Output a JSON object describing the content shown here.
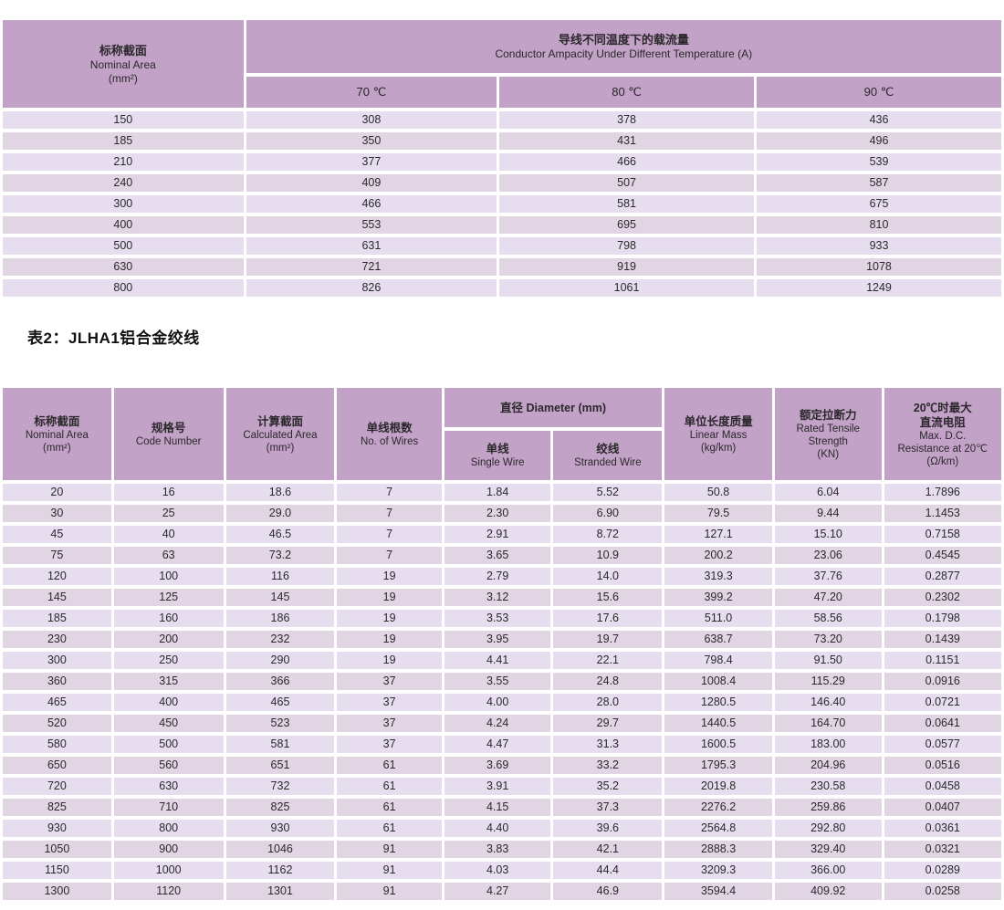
{
  "colors": {
    "header_bg": "#c2a2c6",
    "row_bg": "#e6ddee",
    "row_bg_alt": "#e1d5e4",
    "text": "#2b282c",
    "page_bg": "#ffffff"
  },
  "table1": {
    "header": {
      "nominal_zh": "标称截面",
      "nominal_en": "Nominal Area",
      "nominal_unit": "(mm²)",
      "ampacity_zh": "导线不同温度下的载流量",
      "ampacity_en": "Conductor Ampacity Under Different Temperature (A)",
      "temp70": "70 ℃",
      "temp80": "80 ℃",
      "temp90": "90 ℃"
    },
    "rows": [
      [
        "150",
        "308",
        "378",
        "436"
      ],
      [
        "185",
        "350",
        "431",
        "496"
      ],
      [
        "210",
        "377",
        "466",
        "539"
      ],
      [
        "240",
        "409",
        "507",
        "587"
      ],
      [
        "300",
        "466",
        "581",
        "675"
      ],
      [
        "400",
        "553",
        "695",
        "810"
      ],
      [
        "500",
        "631",
        "798",
        "933"
      ],
      [
        "630",
        "721",
        "919",
        "1078"
      ],
      [
        "800",
        "826",
        "1061",
        "1249"
      ]
    ]
  },
  "section_title": "表2：JLHA1铝合金绞线",
  "table2": {
    "header": {
      "nominal_zh": "标称截面",
      "nominal_en": "Nominal Area",
      "nominal_unit": "(mm²)",
      "code_zh": "规格号",
      "code_en": "Code Number",
      "calc_zh": "计算截面",
      "calc_en": "Calculated Area",
      "calc_unit": "(mm²)",
      "wires_zh": "单线根数",
      "wires_en": "No. of Wires",
      "diameter_zh_en": "直径 Diameter (mm)",
      "single_zh": "单线",
      "single_en": "Single Wire",
      "stranded_zh": "绞线",
      "stranded_en": "Stranded Wire",
      "mass_zh": "单位长度质量",
      "mass_en": "Linear Mass",
      "mass_unit": "(kg/km)",
      "tensile_zh": "额定拉断力",
      "tensile_en1": "Rated Tensile",
      "tensile_en2": "Strength",
      "tensile_unit": "(KN)",
      "res_zh1": "20℃时最大",
      "res_zh2": "直流电阻",
      "res_en1": "Max. D.C.",
      "res_en2": "Resistance at 20℃",
      "res_unit": "(Ω/km)"
    },
    "rows": [
      [
        "20",
        "16",
        "18.6",
        "7",
        "1.84",
        "5.52",
        "50.8",
        "6.04",
        "1.7896"
      ],
      [
        "30",
        "25",
        "29.0",
        "7",
        "2.30",
        "6.90",
        "79.5",
        "9.44",
        "1.1453"
      ],
      [
        "45",
        "40",
        "46.5",
        "7",
        "2.91",
        "8.72",
        "127.1",
        "15.10",
        "0.7158"
      ],
      [
        "75",
        "63",
        "73.2",
        "7",
        "3.65",
        "10.9",
        "200.2",
        "23.06",
        "0.4545"
      ],
      [
        "120",
        "100",
        "116",
        "19",
        "2.79",
        "14.0",
        "319.3",
        "37.76",
        "0.2877"
      ],
      [
        "145",
        "125",
        "145",
        "19",
        "3.12",
        "15.6",
        "399.2",
        "47.20",
        "0.2302"
      ],
      [
        "185",
        "160",
        "186",
        "19",
        "3.53",
        "17.6",
        "511.0",
        "58.56",
        "0.1798"
      ],
      [
        "230",
        "200",
        "232",
        "19",
        "3.95",
        "19.7",
        "638.7",
        "73.20",
        "0.1439"
      ],
      [
        "300",
        "250",
        "290",
        "19",
        "4.41",
        "22.1",
        "798.4",
        "91.50",
        "0.1151"
      ],
      [
        "360",
        "315",
        "366",
        "37",
        "3.55",
        "24.8",
        "1008.4",
        "115.29",
        "0.0916"
      ],
      [
        "465",
        "400",
        "465",
        "37",
        "4.00",
        "28.0",
        "1280.5",
        "146.40",
        "0.0721"
      ],
      [
        "520",
        "450",
        "523",
        "37",
        "4.24",
        "29.7",
        "1440.5",
        "164.70",
        "0.0641"
      ],
      [
        "580",
        "500",
        "581",
        "37",
        "4.47",
        "31.3",
        "1600.5",
        "183.00",
        "0.0577"
      ],
      [
        "650",
        "560",
        "651",
        "61",
        "3.69",
        "33.2",
        "1795.3",
        "204.96",
        "0.0516"
      ],
      [
        "720",
        "630",
        "732",
        "61",
        "3.91",
        "35.2",
        "2019.8",
        "230.58",
        "0.0458"
      ],
      [
        "825",
        "710",
        "825",
        "61",
        "4.15",
        "37.3",
        "2276.2",
        "259.86",
        "0.0407"
      ],
      [
        "930",
        "800",
        "930",
        "61",
        "4.40",
        "39.6",
        "2564.8",
        "292.80",
        "0.0361"
      ],
      [
        "1050",
        "900",
        "1046",
        "91",
        "3.83",
        "42.1",
        "2888.3",
        "329.40",
        "0.0321"
      ],
      [
        "1150",
        "1000",
        "1162",
        "91",
        "4.03",
        "44.4",
        "3209.3",
        "366.00",
        "0.0289"
      ],
      [
        "1300",
        "1120",
        "1301",
        "91",
        "4.27",
        "46.9",
        "3594.4",
        "409.92",
        "0.0258"
      ]
    ]
  }
}
